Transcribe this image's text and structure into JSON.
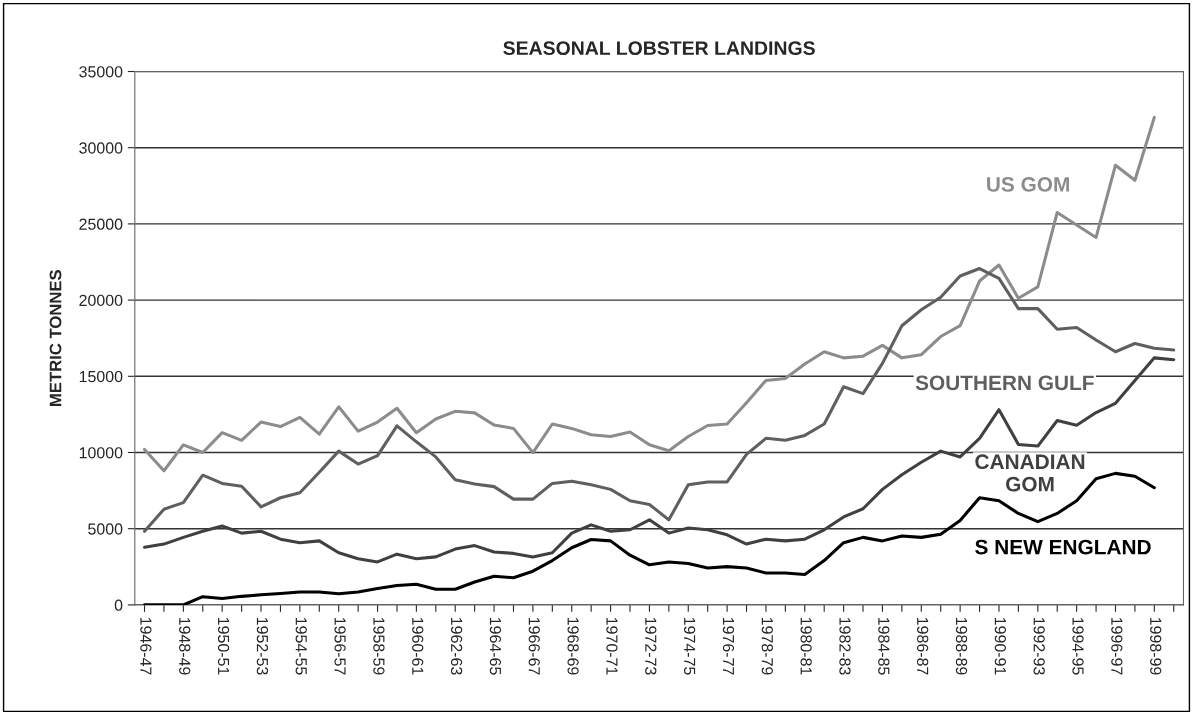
{
  "chart_data": {
    "type": "line",
    "title": "SEASONAL LOBSTER LANDINGS",
    "ylabel": "METRIC TONNES",
    "categories": [
      "1946-47",
      null,
      "1948-49",
      null,
      "1950-51",
      null,
      "1952-53",
      null,
      "1954-55",
      null,
      "1956-57",
      null,
      "1958-59",
      null,
      "1960-61",
      null,
      "1962-63",
      null,
      "1964-65",
      null,
      "1966-67",
      null,
      "1968-69",
      null,
      "1970-71",
      null,
      "1972-73",
      null,
      "1974-75",
      null,
      "1976-77",
      null,
      "1978-79",
      null,
      "1980-81",
      null,
      "1982-83",
      null,
      "1984-85",
      null,
      "1986-87",
      null,
      "1988-89",
      null,
      "1990-91",
      null,
      "1992-93",
      null,
      "1994-95",
      null,
      "1996-97",
      null,
      "1998-99",
      null
    ],
    "series": [
      {
        "name": "US GOM",
        "color": "#8c8c8c",
        "values": [
          10200,
          8800,
          10500,
          10000,
          11300,
          10800,
          12000,
          11700,
          12300,
          11200,
          13000,
          11400,
          12000,
          12900,
          11300,
          12200,
          12700,
          12600,
          11800,
          11580,
          9990,
          11870,
          11580,
          11160,
          11050,
          11350,
          10510,
          10110,
          11050,
          11770,
          11870,
          13270,
          14730,
          14850,
          15810,
          16610,
          16210,
          16320,
          17030,
          16210,
          16420,
          17610,
          18320,
          21250,
          22300,
          20120,
          20870,
          25750,
          24930,
          24110,
          28850,
          27860,
          31990,
          null
        ]
      },
      {
        "name": "SOUTHERN GULF",
        "color": "#5f5f5f",
        "values": [
          4830,
          6280,
          6710,
          8510,
          7970,
          7790,
          6430,
          7030,
          7360,
          8700,
          10090,
          9240,
          9800,
          11750,
          10700,
          9710,
          8210,
          7930,
          7760,
          6940,
          6940,
          7970,
          8120,
          7880,
          7580,
          6830,
          6590,
          5580,
          7880,
          8070,
          8070,
          9880,
          10930,
          10810,
          11120,
          11870,
          14310,
          13860,
          15850,
          18320,
          19370,
          20190,
          21580,
          22070,
          21430,
          19440,
          19440,
          18090,
          18200,
          17380,
          16610,
          17150,
          16840,
          16720
        ]
      },
      {
        "name": "CANADIAN GOM",
        "color": "#404040",
        "values": [
          3780,
          3990,
          4430,
          4830,
          5180,
          4710,
          4830,
          4310,
          4080,
          4200,
          3420,
          3030,
          2820,
          3330,
          3030,
          3150,
          3660,
          3890,
          3470,
          3380,
          3150,
          3420,
          4710,
          5250,
          4830,
          4930,
          5580,
          4710,
          5040,
          4930,
          4600,
          3990,
          4310,
          4200,
          4310,
          4930,
          5770,
          6310,
          7580,
          8540,
          9360,
          10090,
          9710,
          10930,
          12810,
          10530,
          10420,
          12100,
          11790,
          12620,
          13230,
          14730,
          16210,
          16090
        ]
      },
      {
        "name": "S NEW ENGLAND",
        "color": "#000000",
        "values": [
          0,
          0,
          0,
          540,
          420,
          560,
          660,
          750,
          850,
          850,
          730,
          850,
          1080,
          1270,
          1360,
          1030,
          1030,
          1500,
          1880,
          1780,
          2210,
          2910,
          3750,
          4290,
          4200,
          3260,
          2630,
          2820,
          2720,
          2420,
          2510,
          2420,
          2090,
          2090,
          2000,
          2910,
          4080,
          4430,
          4200,
          4520,
          4430,
          4640,
          5540,
          7030,
          6830,
          6000,
          5460,
          6000,
          6830,
          8280,
          8630,
          8440,
          7690,
          null
        ]
      }
    ],
    "ylim": [
      0,
      35000
    ],
    "yticks": [
      0,
      5000,
      10000,
      15000,
      20000,
      25000,
      30000,
      35000
    ],
    "grid": "y",
    "legend": false
  }
}
